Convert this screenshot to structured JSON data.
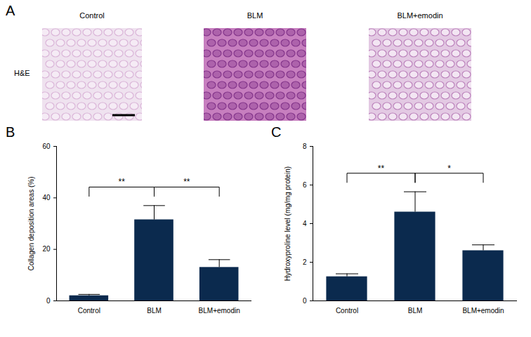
{
  "panel_a": {
    "title": "A",
    "row_label": "H&E",
    "images": [
      "Control",
      "BLM",
      "BLM+emodin"
    ]
  },
  "chart_data": [
    {
      "type": "bar",
      "title": "B",
      "categories": [
        "Control",
        "BLM",
        "BLM+emodin"
      ],
      "values": [
        2,
        31.5,
        13
      ],
      "error": [
        0.5,
        5.5,
        3
      ],
      "color": "#0b2a4e",
      "ylim": [
        0,
        60
      ],
      "yticks": [
        0,
        20,
        40,
        60
      ],
      "ylabel": "Collagen deposition areas (%)",
      "annotations": [
        {
          "text": "**",
          "from": "Control",
          "to": "BLM"
        },
        {
          "text": "**",
          "from": "BLM",
          "to": "BLM+emodin"
        }
      ]
    },
    {
      "type": "bar",
      "title": "C",
      "categories": [
        "Control",
        "BLM",
        "BLM+emodin"
      ],
      "values": [
        1.25,
        4.6,
        2.6
      ],
      "error": [
        0.15,
        1.05,
        0.3
      ],
      "color": "#0b2a4e",
      "ylim": [
        0,
        8
      ],
      "yticks": [
        0,
        2,
        4,
        6,
        8
      ],
      "ylabel": "Hydroxyproline level (mg/mg protein)",
      "annotations": [
        {
          "text": "**",
          "from": "Control",
          "to": "BLM"
        },
        {
          "text": "*",
          "from": "BLM",
          "to": "BLM+emodin"
        }
      ]
    }
  ]
}
